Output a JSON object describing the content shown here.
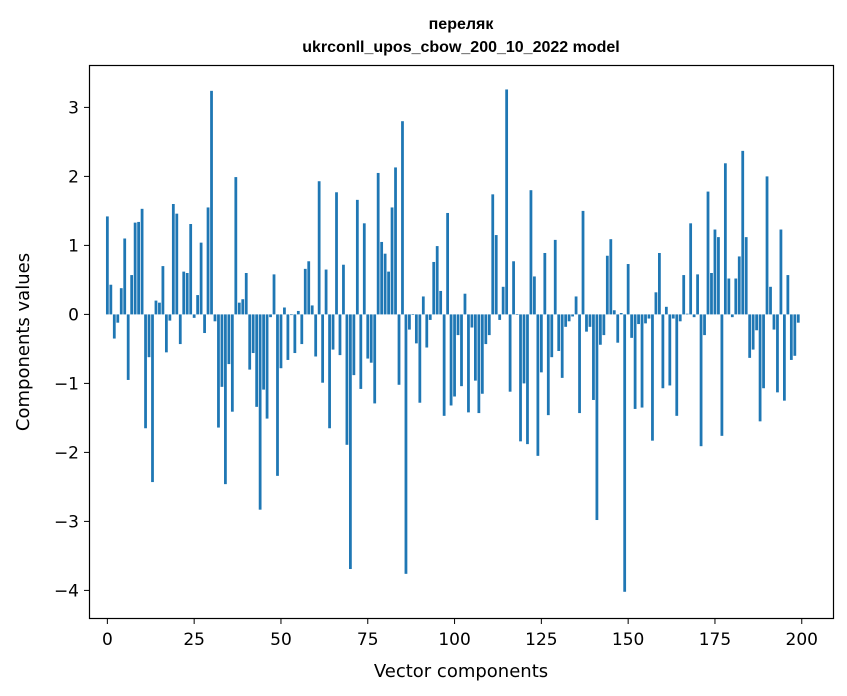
{
  "chart_data": {
    "type": "bar",
    "title_line1": "переляк",
    "title_line2": "ukrconll_upos_cbow_200_10_2022 model",
    "xlabel": "Vector components",
    "ylabel": "Components values",
    "xlim": [
      -5,
      209
    ],
    "ylim": [
      -4.4,
      3.6
    ],
    "xticks": [
      0,
      25,
      50,
      75,
      100,
      125,
      150,
      175,
      200
    ],
    "xtick_labels": [
      "0",
      "25",
      "50",
      "75",
      "100",
      "125",
      "150",
      "175",
      "200"
    ],
    "yticks": [
      3,
      2,
      1,
      0,
      -1,
      -2,
      -3,
      -4
    ],
    "ytick_labels": [
      "3",
      "2",
      "1",
      "0",
      "−1",
      "−2",
      "−3",
      "−4"
    ],
    "bar_color": "#1f77b4",
    "values": [
      1.42,
      0.43,
      -0.35,
      -0.12,
      0.38,
      1.1,
      -0.95,
      0.57,
      1.33,
      1.34,
      1.53,
      -1.65,
      -0.62,
      -2.43,
      0.2,
      0.17,
      0.7,
      -0.55,
      -0.09,
      1.6,
      1.46,
      -0.43,
      0.62,
      0.6,
      1.31,
      -0.05,
      0.28,
      1.04,
      -0.27,
      1.55,
      3.24,
      -0.1,
      -1.64,
      -1.05,
      -2.46,
      -0.72,
      -1.41,
      1.99,
      0.17,
      0.22,
      0.6,
      -0.8,
      -0.56,
      -1.34,
      -2.83,
      -1.09,
      -1.51,
      -0.04,
      0.58,
      -2.34,
      -0.78,
      0.1,
      -0.66,
      -0.01,
      -0.56,
      0.05,
      -0.43,
      0.66,
      0.77,
      0.13,
      -0.61,
      1.93,
      -0.99,
      0.65,
      -1.65,
      -0.51,
      1.77,
      -0.59,
      0.72,
      -1.89,
      -3.69,
      -0.88,
      1.66,
      -1.08,
      1.32,
      -0.64,
      -0.7,
      -1.29,
      2.05,
      1.05,
      0.88,
      0.62,
      1.55,
      2.13,
      -1.02,
      2.8,
      -3.76,
      -0.22,
      0.0,
      -0.42,
      -1.28,
      0.26,
      -0.48,
      -0.08,
      0.76,
      0.99,
      0.34,
      -1.47,
      1.47,
      -1.32,
      -1.19,
      -0.3,
      -1.04,
      0.3,
      -1.42,
      -0.19,
      -0.96,
      -1.43,
      -1.15,
      -0.43,
      -0.3,
      1.74,
      1.15,
      -0.08,
      0.4,
      3.26,
      -1.12,
      0.77,
      0.0,
      -1.84,
      -1.0,
      -1.88,
      1.8,
      0.55,
      -2.05,
      -0.84,
      0.89,
      -1.46,
      -0.62,
      1.08,
      -0.53,
      -0.92,
      -0.18,
      -0.1,
      -0.03,
      0.26,
      -1.43,
      1.5,
      -0.25,
      -0.18,
      -1.24,
      -2.98,
      -0.44,
      -0.3,
      0.85,
      1.09,
      0.06,
      -0.41,
      0.02,
      -4.02,
      0.73,
      -0.34,
      -1.37,
      -0.14,
      -1.35,
      -0.13,
      -0.06,
      -1.83,
      0.32,
      0.89,
      -1.07,
      0.11,
      -1.03,
      -0.06,
      -1.47,
      -0.1,
      0.57,
      0.01,
      1.32,
      -0.04,
      0.58,
      -1.91,
      -0.3,
      1.78,
      0.6,
      1.23,
      1.12,
      -1.76,
      2.19,
      0.52,
      -0.04,
      0.52,
      0.84,
      2.37,
      1.12,
      -0.63,
      -0.51,
      -0.23,
      -1.55,
      -1.07,
      2.0,
      0.4,
      -0.22,
      -1.13,
      1.23,
      -1.25,
      0.57,
      -0.66,
      -0.6,
      -0.12
    ]
  }
}
